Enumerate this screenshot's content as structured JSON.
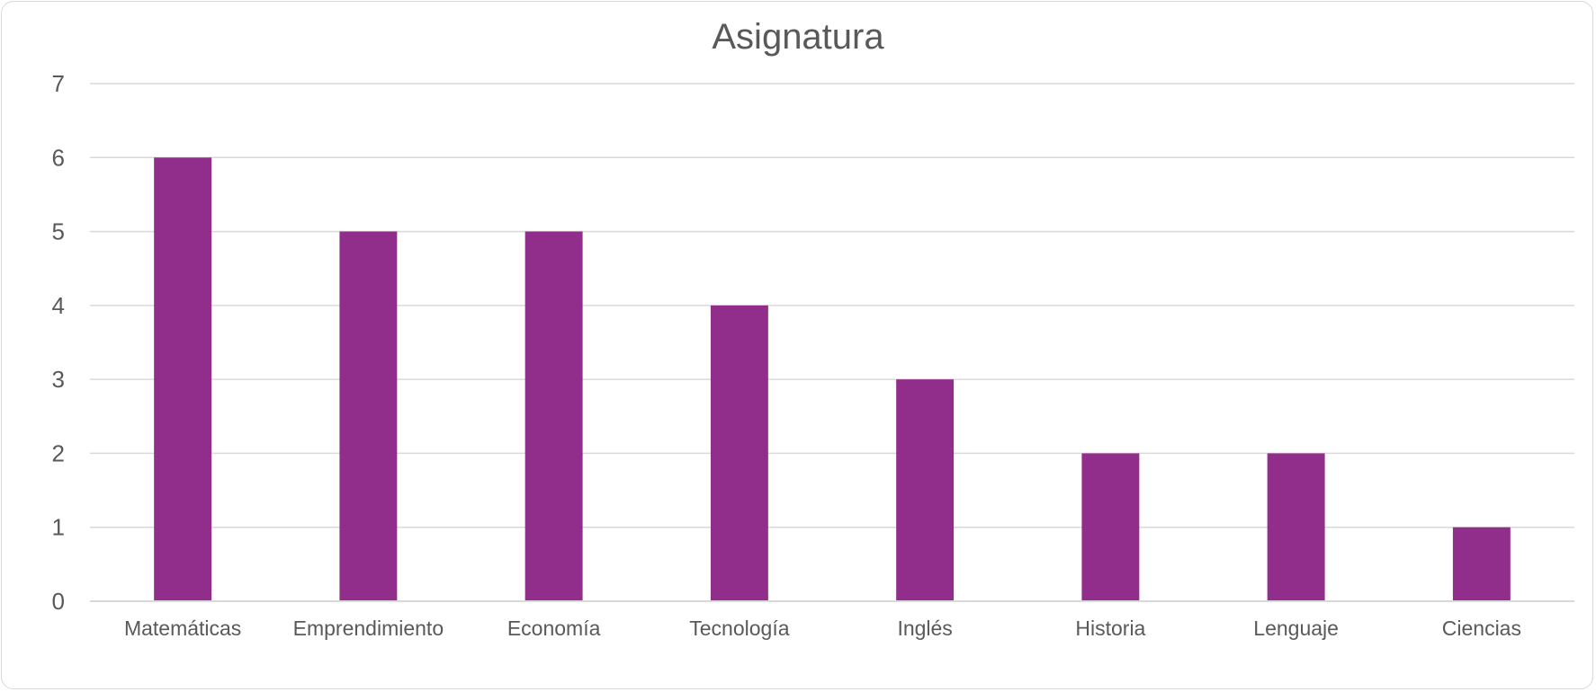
{
  "chart_data": {
    "type": "bar",
    "title": "Asignatura",
    "xlabel": "",
    "ylabel": "",
    "categories": [
      "Matemáticas",
      "Emprendimiento",
      "Economía",
      "Tecnología",
      "Inglés",
      "Historia",
      "Lenguaje",
      "Ciencias"
    ],
    "values": [
      6,
      5,
      5,
      4,
      3,
      2,
      2,
      1
    ],
    "ylim": [
      0,
      7
    ],
    "yticks": [
      "0",
      "1",
      "2",
      "3",
      "4",
      "5",
      "6",
      "7"
    ],
    "grid": true,
    "legend": "none",
    "colors": {
      "bar": "#912d8b",
      "grid": "#d9d9d9",
      "text": "#595959"
    }
  }
}
